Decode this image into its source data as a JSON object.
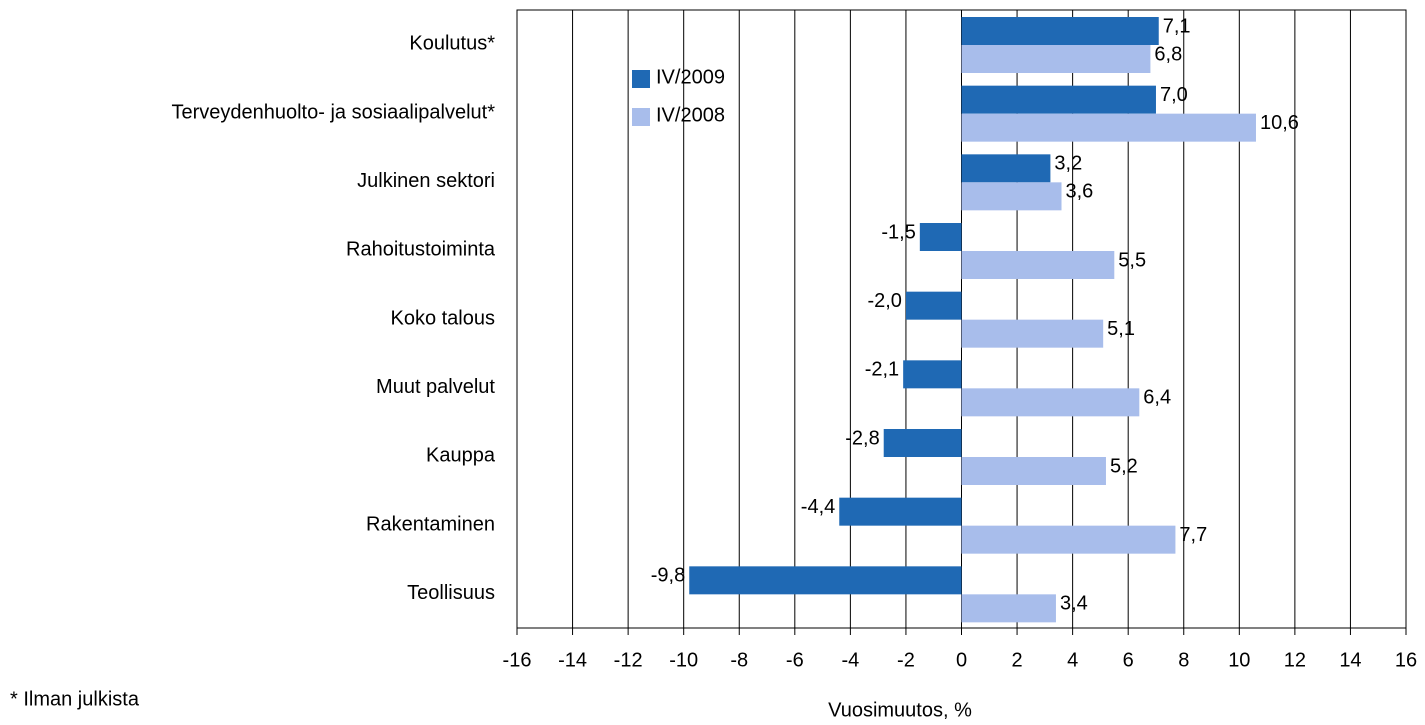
{
  "chart_data": {
    "type": "barh",
    "categories": [
      "Koulutus*",
      "Terveydenhuolto- ja sosiaalipalvelut*",
      "Julkinen sektori",
      "Rahoitustoiminta",
      "Koko talous",
      "Muut palvelut",
      "Kauppa",
      "Rakentaminen",
      "Teollisuus"
    ],
    "series": [
      {
        "name": "IV/2009",
        "color": "#1f69b4",
        "values": [
          7.1,
          7.0,
          3.2,
          -1.5,
          -2.0,
          -2.1,
          -2.8,
          -4.4,
          -9.8
        ],
        "value_labels": [
          "7,1",
          "7,0",
          "3,2",
          "-1,5",
          "-2,0",
          "-2,1",
          "-2,8",
          "-4,4",
          "-9,8"
        ]
      },
      {
        "name": "IV/2008",
        "color": "#a8bdeb",
        "values": [
          6.8,
          10.6,
          3.6,
          5.5,
          5.1,
          6.4,
          5.2,
          7.7,
          3.4
        ],
        "value_labels": [
          "6,8",
          "10,6",
          "3,6",
          "5,5",
          "5,1",
          "6,4",
          "5,2",
          "7,7",
          "3,4"
        ]
      }
    ],
    "xlim": [
      -16,
      16
    ],
    "xticks": [
      -16,
      -14,
      -12,
      -10,
      -8,
      -6,
      -4,
      -2,
      0,
      2,
      4,
      6,
      8,
      10,
      12,
      14,
      16
    ],
    "xlabel": "Vuosimuutos, %",
    "footnote": "* Ilman julkista",
    "grid": true,
    "legend": "upper-left"
  }
}
